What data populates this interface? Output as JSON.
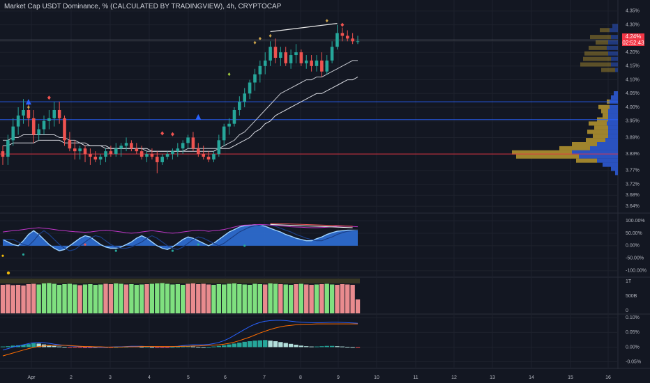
{
  "header": {
    "title": "Market Cap USDT Dominance, % (CALCULATED BY TRADINGVIEW), 4h, CRYPTOCAP"
  },
  "last_price": {
    "value": "4.24%",
    "countdown": "02:52:43"
  },
  "colors": {
    "background": "#131722",
    "up": "#26a69a",
    "down": "#ef5350",
    "blue_line": "#2962ff",
    "red_line": "#f23645",
    "profile_gold": "#a68a2e",
    "profile_blue": "#2b55c9"
  },
  "chart_data": [
    {
      "type": "candlestick",
      "title": "Market Cap USDT Dominance, % (CALCULATED BY TRADINGVIEW), 4h, CRYPTOCAP",
      "x_tick_labels": [
        "Apr",
        "2",
        "3",
        "4",
        "5",
        "6",
        "7",
        "8",
        "9",
        "10",
        "11",
        "12",
        "13",
        "14",
        "15",
        "16"
      ],
      "y_tick_labels": [
        "4.35%",
        "4.30%",
        "4.24%",
        "4.20%",
        "4.15%",
        "4.10%",
        "4.05%",
        "4.00%",
        "3.95%",
        "3.89%",
        "3.83%",
        "3.77%",
        "3.72%",
        "3.68%",
        "3.64%"
      ],
      "ylim": [
        3.62,
        4.37
      ],
      "horizontal_lines": [
        {
          "y": 4.02,
          "color": "#2962ff"
        },
        {
          "y": 3.955,
          "color": "#2962ff"
        },
        {
          "y": 3.83,
          "color": "#f23645"
        },
        {
          "y": 4.245,
          "color": "#787b86"
        }
      ],
      "ohlc": [
        [
          3.84,
          3.86,
          3.79,
          3.82
        ],
        [
          3.82,
          3.9,
          3.79,
          3.88
        ],
        [
          3.88,
          3.96,
          3.86,
          3.93
        ],
        [
          3.93,
          4.0,
          3.9,
          3.97
        ],
        [
          3.97,
          4.03,
          3.94,
          3.99
        ],
        [
          3.99,
          4.01,
          3.93,
          3.96
        ],
        [
          3.96,
          3.99,
          3.87,
          3.9
        ],
        [
          3.9,
          3.94,
          3.88,
          3.92
        ],
        [
          3.92,
          3.97,
          3.9,
          3.95
        ],
        [
          3.95,
          3.99,
          3.92,
          3.96
        ],
        [
          3.96,
          4.02,
          3.93,
          3.99
        ],
        [
          3.99,
          4.02,
          3.94,
          3.96
        ],
        [
          3.96,
          3.97,
          3.86,
          3.88
        ],
        [
          3.88,
          3.91,
          3.84,
          3.85
        ],
        [
          3.85,
          3.88,
          3.81,
          3.84
        ],
        [
          3.84,
          3.86,
          3.81,
          3.85
        ],
        [
          3.85,
          3.86,
          3.8,
          3.83
        ],
        [
          3.83,
          3.85,
          3.79,
          3.82
        ],
        [
          3.82,
          3.84,
          3.8,
          3.81
        ],
        [
          3.81,
          3.83,
          3.79,
          3.82
        ],
        [
          3.82,
          3.85,
          3.8,
          3.84
        ],
        [
          3.84,
          3.86,
          3.82,
          3.83
        ],
        [
          3.83,
          3.87,
          3.82,
          3.85
        ],
        [
          3.85,
          3.87,
          3.82,
          3.86
        ],
        [
          3.86,
          3.89,
          3.84,
          3.87
        ],
        [
          3.87,
          3.88,
          3.84,
          3.85
        ],
        [
          3.85,
          3.87,
          3.83,
          3.84
        ],
        [
          3.84,
          3.86,
          3.81,
          3.82
        ],
        [
          3.82,
          3.84,
          3.8,
          3.83
        ],
        [
          3.83,
          3.85,
          3.81,
          3.82
        ],
        [
          3.82,
          3.84,
          3.76,
          3.8
        ],
        [
          3.8,
          3.83,
          3.79,
          3.82
        ],
        [
          3.82,
          3.84,
          3.81,
          3.83
        ],
        [
          3.83,
          3.85,
          3.81,
          3.84
        ],
        [
          3.84,
          3.87,
          3.82,
          3.85
        ],
        [
          3.85,
          3.88,
          3.83,
          3.87
        ],
        [
          3.87,
          3.9,
          3.85,
          3.89
        ],
        [
          3.89,
          3.91,
          3.84,
          3.85
        ],
        [
          3.85,
          3.87,
          3.82,
          3.83
        ],
        [
          3.83,
          3.86,
          3.81,
          3.82
        ],
        [
          3.82,
          3.84,
          3.8,
          3.81
        ],
        [
          3.81,
          3.84,
          3.8,
          3.83
        ],
        [
          3.83,
          3.9,
          3.82,
          3.88
        ],
        [
          3.88,
          3.94,
          3.86,
          3.93
        ],
        [
          3.93,
          3.96,
          3.9,
          3.94
        ],
        [
          3.94,
          4.0,
          3.93,
          3.99
        ],
        [
          3.99,
          4.04,
          3.97,
          4.02
        ],
        [
          4.02,
          4.07,
          4.0,
          4.05
        ],
        [
          4.05,
          4.1,
          4.03,
          4.09
        ],
        [
          4.09,
          4.14,
          4.06,
          4.12
        ],
        [
          4.12,
          4.17,
          4.09,
          4.15
        ],
        [
          4.15,
          4.2,
          4.12,
          4.17
        ],
        [
          4.17,
          4.24,
          4.15,
          4.22
        ],
        [
          4.22,
          4.25,
          4.16,
          4.18
        ],
        [
          4.18,
          4.22,
          4.15,
          4.2
        ],
        [
          4.2,
          4.22,
          4.15,
          4.16
        ],
        [
          4.16,
          4.21,
          4.14,
          4.19
        ],
        [
          4.19,
          4.23,
          4.16,
          4.2
        ],
        [
          4.2,
          4.21,
          4.15,
          4.16
        ],
        [
          4.16,
          4.19,
          4.14,
          4.17
        ],
        [
          4.17,
          4.19,
          4.13,
          4.15
        ],
        [
          4.15,
          4.19,
          4.13,
          4.17
        ],
        [
          4.17,
          4.2,
          4.11,
          4.13
        ],
        [
          4.13,
          4.19,
          4.12,
          4.17
        ],
        [
          4.17,
          4.24,
          4.16,
          4.22
        ],
        [
          4.22,
          4.3,
          4.21,
          4.27
        ],
        [
          4.27,
          4.29,
          4.24,
          4.26
        ],
        [
          4.26,
          4.28,
          4.24,
          4.25
        ],
        [
          4.25,
          4.27,
          4.23,
          4.24
        ],
        [
          4.24,
          4.26,
          4.23,
          4.24
        ]
      ],
      "ma_fast": [
        3.88,
        3.88,
        3.89,
        3.89,
        3.9,
        3.9,
        3.9,
        3.9,
        3.9,
        3.9,
        3.9,
        3.89,
        3.89,
        3.88,
        3.88,
        3.87,
        3.87,
        3.86,
        3.86,
        3.86,
        3.85,
        3.85,
        3.85,
        3.85,
        3.85,
        3.85,
        3.85,
        3.85,
        3.84,
        3.84,
        3.84,
        3.84,
        3.84,
        3.84,
        3.84,
        3.84,
        3.85,
        3.85,
        3.85,
        3.85,
        3.85,
        3.85,
        3.85,
        3.86,
        3.87,
        3.88,
        3.9,
        3.91,
        3.93,
        3.95,
        3.97,
        3.99,
        4.01,
        4.03,
        4.05,
        4.06,
        4.07,
        4.08,
        4.09,
        4.1,
        4.1,
        4.11,
        4.11,
        4.12,
        4.13,
        4.14,
        4.15,
        4.16,
        4.17,
        4.17
      ],
      "ma_slow": [
        3.86,
        3.86,
        3.87,
        3.87,
        3.87,
        3.87,
        3.87,
        3.88,
        3.88,
        3.88,
        3.88,
        3.88,
        3.87,
        3.87,
        3.87,
        3.87,
        3.86,
        3.86,
        3.86,
        3.86,
        3.86,
        3.85,
        3.85,
        3.85,
        3.85,
        3.85,
        3.85,
        3.85,
        3.85,
        3.84,
        3.84,
        3.84,
        3.84,
        3.84,
        3.84,
        3.84,
        3.84,
        3.84,
        3.84,
        3.84,
        3.84,
        3.84,
        3.85,
        3.85,
        3.85,
        3.86,
        3.87,
        3.88,
        3.89,
        3.91,
        3.92,
        3.94,
        3.95,
        3.97,
        3.98,
        3.99,
        4.0,
        4.01,
        4.02,
        4.03,
        4.04,
        4.05,
        4.05,
        4.06,
        4.07,
        4.08,
        4.09,
        4.1,
        4.1,
        4.11
      ]
    },
    {
      "type": "area",
      "y_tick_labels": [
        "100.00%",
        "50.00%",
        "0.00%",
        "-50.00%",
        "-100.00%"
      ],
      "ylim": [
        -120,
        125
      ],
      "wave": [
        25,
        15,
        5,
        0,
        20,
        45,
        60,
        45,
        25,
        5,
        -10,
        -20,
        -15,
        0,
        15,
        30,
        40,
        35,
        20,
        5,
        -5,
        -10,
        -10,
        -5,
        5,
        15,
        30,
        40,
        30,
        15,
        0,
        -10,
        -15,
        -5,
        10,
        25,
        35,
        30,
        20,
        10,
        0,
        10,
        25,
        40,
        55,
        65,
        75,
        80,
        82,
        84,
        82,
        78,
        70,
        62,
        55,
        45,
        38,
        30,
        25,
        20,
        20,
        28,
        35,
        45,
        52,
        58,
        60,
        62,
        62,
        62
      ],
      "momentum": [
        55,
        58,
        60,
        62,
        65,
        68,
        70,
        72,
        70,
        68,
        65,
        62,
        60,
        58,
        56,
        55,
        54,
        55,
        58,
        60,
        62,
        60,
        58,
        55,
        52,
        50,
        52,
        55,
        58,
        60,
        58,
        55,
        52,
        50,
        52,
        55,
        58,
        60,
        62,
        60,
        58,
        60,
        62,
        65,
        70,
        75,
        80,
        82,
        83,
        84,
        85,
        84,
        83,
        82,
        80,
        78,
        76,
        75,
        74,
        73,
        72,
        72,
        73,
        74,
        76,
        78,
        78,
        78,
        77,
        76
      ]
    },
    {
      "type": "bar",
      "y_tick_labels": [
        "1T",
        "500B",
        "0"
      ],
      "ylim": [
        0,
        1000
      ],
      "values": [
        820,
        830,
        810,
        820,
        800,
        840,
        850,
        830,
        860,
        870,
        850,
        820,
        840,
        850,
        830,
        810,
        830,
        840,
        820,
        830,
        850,
        840,
        860,
        850,
        830,
        840,
        820,
        830,
        840,
        850,
        860,
        870,
        850,
        830,
        840,
        820,
        850,
        860,
        840,
        850,
        830,
        820,
        840,
        830,
        850,
        860,
        840,
        830,
        820,
        850,
        840,
        830,
        860,
        850,
        840,
        830,
        820,
        840,
        850,
        830,
        820,
        830,
        840,
        850,
        830,
        820,
        840,
        830,
        820,
        400
      ],
      "colors": [
        "down",
        "down",
        "down",
        "down",
        "down",
        "down",
        "down",
        "up",
        "up",
        "up",
        "up",
        "up",
        "up",
        "up",
        "up",
        "down",
        "up",
        "up",
        "up",
        "up",
        "down",
        "down",
        "up",
        "up",
        "down",
        "up",
        "up",
        "up",
        "down",
        "up",
        "up",
        "up",
        "up",
        "up",
        "up",
        "up",
        "down",
        "down",
        "down",
        "down",
        "down",
        "up",
        "up",
        "up",
        "up",
        "up",
        "up",
        "up",
        "up",
        "up",
        "up",
        "down",
        "up",
        "up",
        "down",
        "up",
        "up",
        "down",
        "up",
        "down",
        "down",
        "up",
        "down",
        "up",
        "up",
        "down",
        "down",
        "down",
        "down",
        "down"
      ]
    },
    {
      "type": "bar",
      "y_tick_labels": [
        "0.10%",
        "0.05%",
        "0.00%",
        "-0.05%"
      ],
      "ylim": [
        -0.07,
        0.11
      ],
      "histogram": [
        0.002,
        0.003,
        0.005,
        0.006,
        0.008,
        0.01,
        0.013,
        0.012,
        0.009,
        0.007,
        0.004,
        0.002,
        0.001,
        -0.001,
        -0.002,
        -0.002,
        -0.003,
        -0.003,
        -0.002,
        -0.002,
        -0.001,
        -0.001,
        0.0,
        0.001,
        0.001,
        0.002,
        0.002,
        0.001,
        0.001,
        0.0,
        -0.001,
        -0.001,
        -0.001,
        0.0,
        0.001,
        0.002,
        0.003,
        0.002,
        0.001,
        0.0,
        0.0,
        0.002,
        0.004,
        0.006,
        0.009,
        0.012,
        0.015,
        0.018,
        0.02,
        0.022,
        0.023,
        0.024,
        0.022,
        0.02,
        0.017,
        0.014,
        0.011,
        0.008,
        0.005,
        0.003,
        0.002,
        0.002,
        0.003,
        0.004,
        0.004,
        0.003,
        0.002,
        0.001,
        0.0,
        -0.001
      ],
      "macd": [
        -0.01,
        -0.005,
        0.0,
        0.004,
        0.008,
        0.012,
        0.015,
        0.016,
        0.015,
        0.013,
        0.01,
        0.008,
        0.006,
        0.004,
        0.003,
        0.002,
        0.001,
        0.0,
        0.0,
        -0.001,
        -0.001,
        0.0,
        0.001,
        0.001,
        0.002,
        0.003,
        0.003,
        0.003,
        0.002,
        0.002,
        0.001,
        0.001,
        0.001,
        0.002,
        0.003,
        0.005,
        0.007,
        0.008,
        0.008,
        0.008,
        0.009,
        0.012,
        0.016,
        0.022,
        0.03,
        0.04,
        0.05,
        0.06,
        0.07,
        0.078,
        0.084,
        0.088,
        0.09,
        0.091,
        0.091,
        0.09,
        0.088,
        0.086,
        0.085,
        0.084,
        0.083,
        0.083,
        0.083,
        0.084,
        0.085,
        0.085,
        0.084,
        0.083,
        0.082,
        0.081
      ],
      "signal": [
        -0.03,
        -0.025,
        -0.02,
        -0.015,
        -0.01,
        -0.005,
        -0.001,
        0.002,
        0.004,
        0.005,
        0.006,
        0.006,
        0.006,
        0.005,
        0.004,
        0.003,
        0.002,
        0.002,
        0.001,
        0.001,
        0.0,
        0.0,
        0.0,
        0.0,
        0.001,
        0.001,
        0.001,
        0.002,
        0.002,
        0.002,
        0.002,
        0.002,
        0.002,
        0.002,
        0.002,
        0.003,
        0.003,
        0.004,
        0.004,
        0.005,
        0.006,
        0.007,
        0.008,
        0.01,
        0.013,
        0.017,
        0.022,
        0.028,
        0.034,
        0.041,
        0.048,
        0.054,
        0.06,
        0.065,
        0.069,
        0.072,
        0.074,
        0.076,
        0.077,
        0.078,
        0.078,
        0.079,
        0.079,
        0.079,
        0.079,
        0.079,
        0.079,
        0.079,
        0.079,
        0.079
      ]
    }
  ]
}
